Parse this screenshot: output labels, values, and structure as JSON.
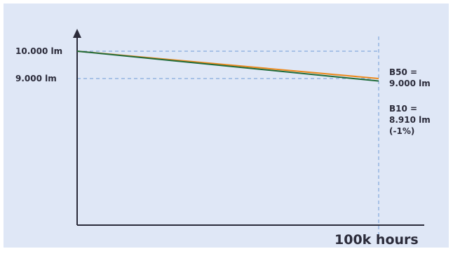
{
  "colors": {
    "background": "#dfe7f6",
    "axis": "#2b2b3a",
    "gridline": "#6f9bd6",
    "b50_series": "#ec8a1e",
    "b10_series": "#1f6b3a"
  },
  "chart_data": {
    "type": "line",
    "title": "",
    "xlabel": "100k hours",
    "ylabel": "",
    "xlim": [
      0,
      100000
    ],
    "ylim": [
      0,
      11000
    ],
    "grid": "dashed reference lines at 10.000 lm, 9.000 lm and 100k hours",
    "y_ticks": [
      {
        "value": 10000,
        "label": "10.000 lm"
      },
      {
        "value": 9000,
        "label": "9.000 lm"
      }
    ],
    "series": [
      {
        "key": "b50",
        "x": [
          0,
          100000
        ],
        "values": [
          10000,
          9000
        ]
      },
      {
        "key": "b10",
        "x": [
          0,
          100000
        ],
        "values": [
          10000,
          8910
        ]
      }
    ],
    "annotations": [
      {
        "series": "b50",
        "lines": [
          "B50 =",
          "9.000 lm"
        ]
      },
      {
        "series": "b10",
        "lines": [
          "B10 =",
          "8.910 lm",
          "(-1%)"
        ]
      }
    ]
  }
}
